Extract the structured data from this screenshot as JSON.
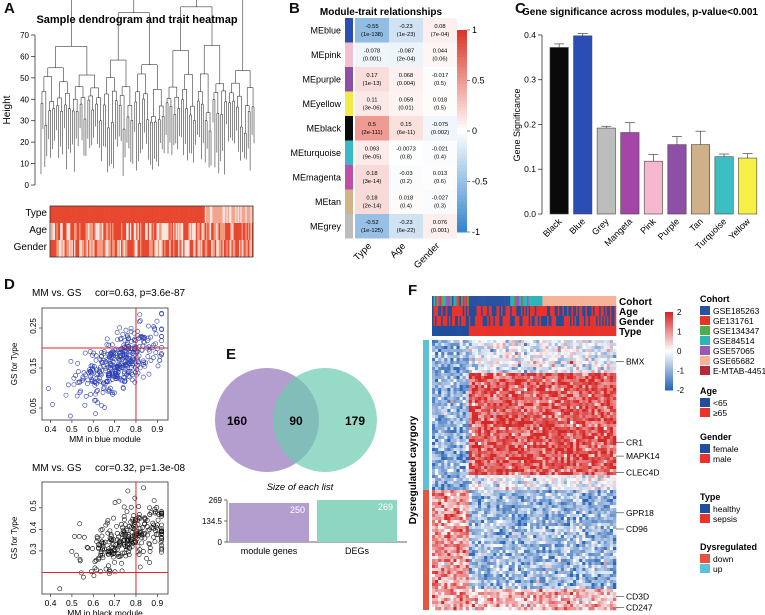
{
  "panel_labels": {
    "a": "A",
    "b": "B",
    "c": "C",
    "d": "D",
    "e": "E",
    "f": "F"
  },
  "panel_a": {
    "title": "Sample dendrogram and trait heatmap",
    "ylabel": "Height",
    "yticks": [
      "0",
      "10",
      "20",
      "30",
      "40",
      "50",
      "60",
      "70"
    ],
    "trait_rows": [
      "Type",
      "Age",
      "Gender"
    ]
  },
  "panel_b": {
    "title": "Module-trait relationships",
    "modules": [
      "MEblue",
      "MEpink",
      "MEpurple",
      "MEyellow",
      "MEblack",
      "MEturquoise",
      "MEmagenta",
      "MEtan",
      "MEgrey"
    ],
    "module_colors": [
      "#2b4eb5",
      "#f3c0cf",
      "#8e4fa6",
      "#f2e94d",
      "#0a0a0a",
      "#3ab9c7",
      "#c04fa6",
      "#d3b48a",
      "#bdbdbd"
    ],
    "traits": [
      "Type",
      "Age",
      "Gender"
    ],
    "cells": [
      [
        [
          "-0.55",
          "(1e-138)"
        ],
        [
          "-0.23",
          "(1e-23)"
        ],
        [
          "0.08",
          "(7e-04)"
        ]
      ],
      [
        [
          "-0.078",
          "(0.001)"
        ],
        [
          "-0.087",
          "(2e-04)"
        ],
        [
          "0.044",
          "(0.06)"
        ]
      ],
      [
        [
          "0.17",
          "(1e-13)"
        ],
        [
          "0.068",
          "(0.004)"
        ],
        [
          "-0.017",
          "(0.5)"
        ]
      ],
      [
        [
          "0.11",
          "(3e-06)"
        ],
        [
          "0.059",
          "(0.01)"
        ],
        [
          "0.018",
          "(0.5)"
        ]
      ],
      [
        [
          "0.5",
          "(2e-111)"
        ],
        [
          "0.15",
          "(6e-11)"
        ],
        [
          "-0.075",
          "(0.002)"
        ]
      ],
      [
        [
          "0.093",
          "(9e-05)"
        ],
        [
          "-0.0073",
          "(0.8)"
        ],
        [
          "-0.021",
          "(0.4)"
        ]
      ],
      [
        [
          "0.18",
          "(3e-14)"
        ],
        [
          "-0.03",
          "(0.2)"
        ],
        [
          "0.013",
          "(0.6)"
        ]
      ],
      [
        [
          "0.18",
          "(2e-14)"
        ],
        [
          "0.018",
          "(0.4)"
        ],
        [
          "-0.027",
          "(0.3)"
        ]
      ],
      [
        [
          "-0.52",
          "(1e-125)"
        ],
        [
          "-0.23",
          "(6e-22)"
        ],
        [
          "0.076",
          "(0.001)"
        ]
      ]
    ],
    "values": [
      [
        -0.55,
        -0.23,
        0.08
      ],
      [
        -0.078,
        -0.087,
        0.044
      ],
      [
        0.17,
        0.068,
        -0.017
      ],
      [
        0.11,
        0.059,
        0.018
      ],
      [
        0.5,
        0.15,
        -0.075
      ],
      [
        0.093,
        -0.0073,
        -0.021
      ],
      [
        0.18,
        -0.03,
        0.013
      ],
      [
        0.18,
        0.018,
        -0.027
      ],
      [
        -0.52,
        -0.23,
        0.076
      ]
    ],
    "scale_ticks": [
      "1",
      "0.5",
      "0",
      "-0.5",
      "-1"
    ]
  },
  "chart_data": [
    {
      "type": "bar",
      "title": "Gene significance across modules, p-value<0.001",
      "ylabel": "Gene Significance",
      "categories": [
        "Black",
        "Blue",
        "Grey",
        "Mangeta",
        "Pink",
        "Purple",
        "Tan",
        "Turquoise",
        "Yellow"
      ],
      "values": [
        0.372,
        0.398,
        0.192,
        0.182,
        0.118,
        0.155,
        0.155,
        0.128,
        0.125
      ],
      "errors": [
        0.008,
        0.005,
        0.004,
        0.022,
        0.015,
        0.018,
        0.03,
        0.006,
        0.01
      ],
      "colors": [
        "#0a0a0a",
        "#2b4eb5",
        "#bdbdbd",
        "#a346a8",
        "#f6b8cf",
        "#8e4fa6",
        "#cfb089",
        "#3bbfc2",
        "#f6ef46"
      ],
      "ylim": [
        0,
        0.42
      ],
      "yticks": [
        "0.0",
        "0.1",
        "0.2",
        "0.3",
        "0.4"
      ]
    },
    {
      "type": "scatter",
      "title": "MM vs. GS",
      "annotation": "cor=0.63, p=3.6e-87",
      "xlabel": "MM in blue module",
      "ylabel": "GS for Type",
      "xticks": [
        "0.4",
        "0.5",
        "0.6",
        "0.7",
        "0.8",
        "0.9"
      ],
      "yticks": [
        "0.05",
        "0.15",
        "0.25"
      ],
      "xlim": [
        0.36,
        0.95
      ],
      "ylim": [
        0.02,
        0.3
      ],
      "color": "#2b3fb0",
      "ref_x": 0.8,
      "ref_y": 0.2
    },
    {
      "type": "scatter",
      "title": "MM vs. GS",
      "annotation": "cor=0.32, p=1.3e-08",
      "xlabel": "MM in black module",
      "ylabel": "GS for Type",
      "xticks": [
        "0.4",
        "0.5",
        "0.6",
        "0.7",
        "0.8",
        "0.9"
      ],
      "yticks": [
        "0.3",
        "0.4",
        "0.5"
      ],
      "xlim": [
        0.36,
        0.95
      ],
      "ylim": [
        0.1,
        0.62
      ],
      "color": "#111111",
      "ref_x": 0.8,
      "ref_y": 0.2
    }
  ],
  "panel_e": {
    "left_count": "160",
    "overlap_count": "90",
    "right_count": "179",
    "bar_title": "Size of each list",
    "bar_yticks": [
      "269",
      "134.5",
      "0"
    ],
    "bars": [
      {
        "label": "module genes",
        "value": 250,
        "text": "250"
      },
      {
        "label": "DEGs",
        "value": 269,
        "text": "269"
      }
    ],
    "bar_max": 269
  },
  "panel_f": {
    "track_labels": [
      "Cohort",
      "Age",
      "Gender",
      "Type"
    ],
    "row_label": "Dysregulated cayrgory",
    "genes": [
      "BMX",
      "CR1",
      "MAPK14",
      "CLEC4D",
      "GPR18",
      "CD96",
      "CD3D",
      "CD247"
    ],
    "scale_ticks": [
      "2",
      "1",
      "0",
      "-1",
      "-2"
    ],
    "legend": {
      "cohort_title": "Cohort",
      "cohorts": [
        {
          "label": "GSE185263",
          "color": "#2a52a3"
        },
        {
          "label": "GE131761",
          "color": "#e3362b"
        },
        {
          "label": "GSE134347",
          "color": "#4cae4c"
        },
        {
          "label": "GSE84514",
          "color": "#2fb5b8"
        },
        {
          "label": "GSE57065",
          "color": "#9b58b5"
        },
        {
          "label": "GSE65682",
          "color": "#f4b399"
        },
        {
          "label": "E-MTAB-4451",
          "color": "#b52a36"
        }
      ],
      "age_title": "Age",
      "ages": [
        {
          "label": "<65",
          "color": "#1f4e9c"
        },
        {
          "label": "≥65",
          "color": "#e8322b"
        }
      ],
      "gender_title": "Gender",
      "genders": [
        {
          "label": "female",
          "color": "#1f4e9c"
        },
        {
          "label": "male",
          "color": "#e8322b"
        }
      ],
      "type_title": "Type",
      "types": [
        {
          "label": "healthy",
          "color": "#1f4e9c"
        },
        {
          "label": "sepsis",
          "color": "#e8322b"
        }
      ],
      "dys_title": "Dysregulated",
      "dys": [
        {
          "label": "down",
          "color": "#e8533d"
        },
        {
          "label": "up",
          "color": "#5bc1d9"
        }
      ]
    }
  }
}
